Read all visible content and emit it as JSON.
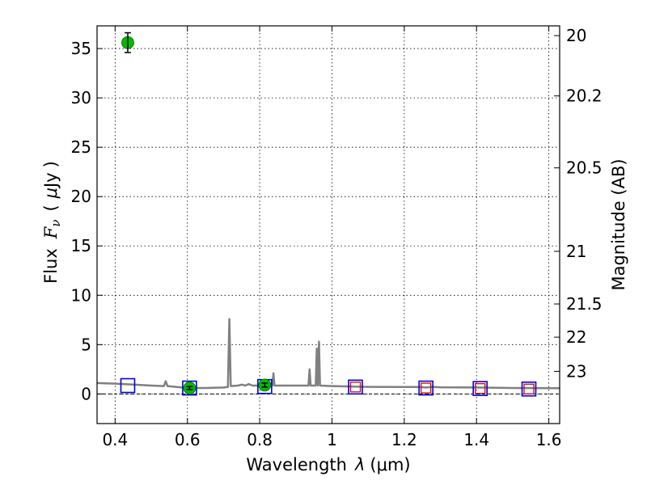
{
  "chart_data": {
    "type": "scatter",
    "xlabel_prefix": "Wavelength",
    "xlabel_symbol": "λ",
    "xlabel_unit": "(μm)",
    "ylabel_prefix": "Flux",
    "ylabel_symbol": "F",
    "ylabel_symbol_sub": "ν",
    "ylabel_unit_open": "(",
    "ylabel_unit_mu": "μ",
    "ylabel_unit_rest": "Jy",
    "ylabel_unit_close": ")",
    "y2label": "Magnitude (AB)",
    "xlim": [
      0.35,
      1.63
    ],
    "ylim": [
      -3,
      37.3
    ],
    "grid": true,
    "grid_style": "dotted",
    "x_ticks": [
      {
        "value": 0.4,
        "label": "0.4"
      },
      {
        "value": 0.6,
        "label": "0.6"
      },
      {
        "value": 0.8,
        "label": "0.8"
      },
      {
        "value": 1.0,
        "label": "1"
      },
      {
        "value": 1.2,
        "label": "1.2"
      },
      {
        "value": 1.4,
        "label": "1.4"
      },
      {
        "value": 1.6,
        "label": "1.6"
      }
    ],
    "y_ticks": [
      {
        "value": 0,
        "label": "0"
      },
      {
        "value": 5,
        "label": "5"
      },
      {
        "value": 10,
        "label": "10"
      },
      {
        "value": 15,
        "label": "15"
      },
      {
        "value": 20,
        "label": "20"
      },
      {
        "value": 25,
        "label": "25"
      },
      {
        "value": 30,
        "label": "30"
      },
      {
        "value": 35,
        "label": "35"
      }
    ],
    "y2_ticks": [
      {
        "mag": 20,
        "label": "20"
      },
      {
        "mag": 20.2,
        "label": "20.2"
      },
      {
        "mag": 20.5,
        "label": "20.5"
      },
      {
        "mag": 21,
        "label": "21"
      },
      {
        "mag": 21.5,
        "label": "21.5"
      },
      {
        "mag": 22,
        "label": "22"
      },
      {
        "mag": 23,
        "label": "23"
      }
    ],
    "observed_flux": {
      "color": "#00bb00",
      "points": [
        {
          "x": 0.435,
          "y": 35.6,
          "yerr": 1.0
        },
        {
          "x": 0.606,
          "y": 0.6,
          "yerr": 0.15
        },
        {
          "x": 0.814,
          "y": 0.9,
          "yerr": 0.2
        }
      ]
    },
    "model_photometry_blue": {
      "color": "#0000dd",
      "points": [
        {
          "x": 0.435,
          "y": 0.85
        },
        {
          "x": 0.606,
          "y": 0.6
        },
        {
          "x": 0.814,
          "y": 0.75
        },
        {
          "x": 1.065,
          "y": 0.7
        },
        {
          "x": 1.26,
          "y": 0.6
        },
        {
          "x": 1.41,
          "y": 0.55
        },
        {
          "x": 1.545,
          "y": 0.5
        }
      ]
    },
    "model_photometry_red": {
      "color": "#dd0000",
      "points": [
        {
          "x": 1.065,
          "y": 0.7
        },
        {
          "x": 1.26,
          "y": 0.6
        },
        {
          "x": 1.41,
          "y": 0.55
        },
        {
          "x": 1.545,
          "y": 0.5
        }
      ]
    },
    "zero_line_color": "#000000",
    "spectrum": {
      "color": "#808080",
      "points": [
        [
          0.35,
          1.1
        ],
        [
          0.4,
          1.05
        ],
        [
          0.45,
          0.95
        ],
        [
          0.5,
          0.85
        ],
        [
          0.535,
          0.8
        ],
        [
          0.54,
          1.3
        ],
        [
          0.545,
          0.8
        ],
        [
          0.6,
          0.6
        ],
        [
          0.65,
          0.6
        ],
        [
          0.7,
          0.65
        ],
        [
          0.712,
          0.7
        ],
        [
          0.716,
          7.6
        ],
        [
          0.72,
          0.8
        ],
        [
          0.74,
          0.85
        ],
        [
          0.75,
          0.95
        ],
        [
          0.76,
          0.85
        ],
        [
          0.77,
          1.0
        ],
        [
          0.78,
          0.85
        ],
        [
          0.8,
          0.85
        ],
        [
          0.835,
          0.85
        ],
        [
          0.838,
          2.1
        ],
        [
          0.841,
          0.85
        ],
        [
          0.88,
          0.85
        ],
        [
          0.935,
          0.85
        ],
        [
          0.938,
          2.5
        ],
        [
          0.941,
          0.85
        ],
        [
          0.955,
          0.85
        ],
        [
          0.958,
          4.6
        ],
        [
          0.961,
          0.85
        ],
        [
          0.964,
          5.3
        ],
        [
          0.967,
          0.85
        ],
        [
          1.0,
          0.8
        ],
        [
          1.1,
          0.72
        ],
        [
          1.2,
          0.7
        ],
        [
          1.24,
          0.7
        ],
        [
          1.26,
          0.65
        ],
        [
          1.28,
          0.72
        ],
        [
          1.3,
          0.68
        ],
        [
          1.4,
          0.65
        ],
        [
          1.5,
          0.6
        ],
        [
          1.63,
          0.58
        ]
      ]
    }
  }
}
